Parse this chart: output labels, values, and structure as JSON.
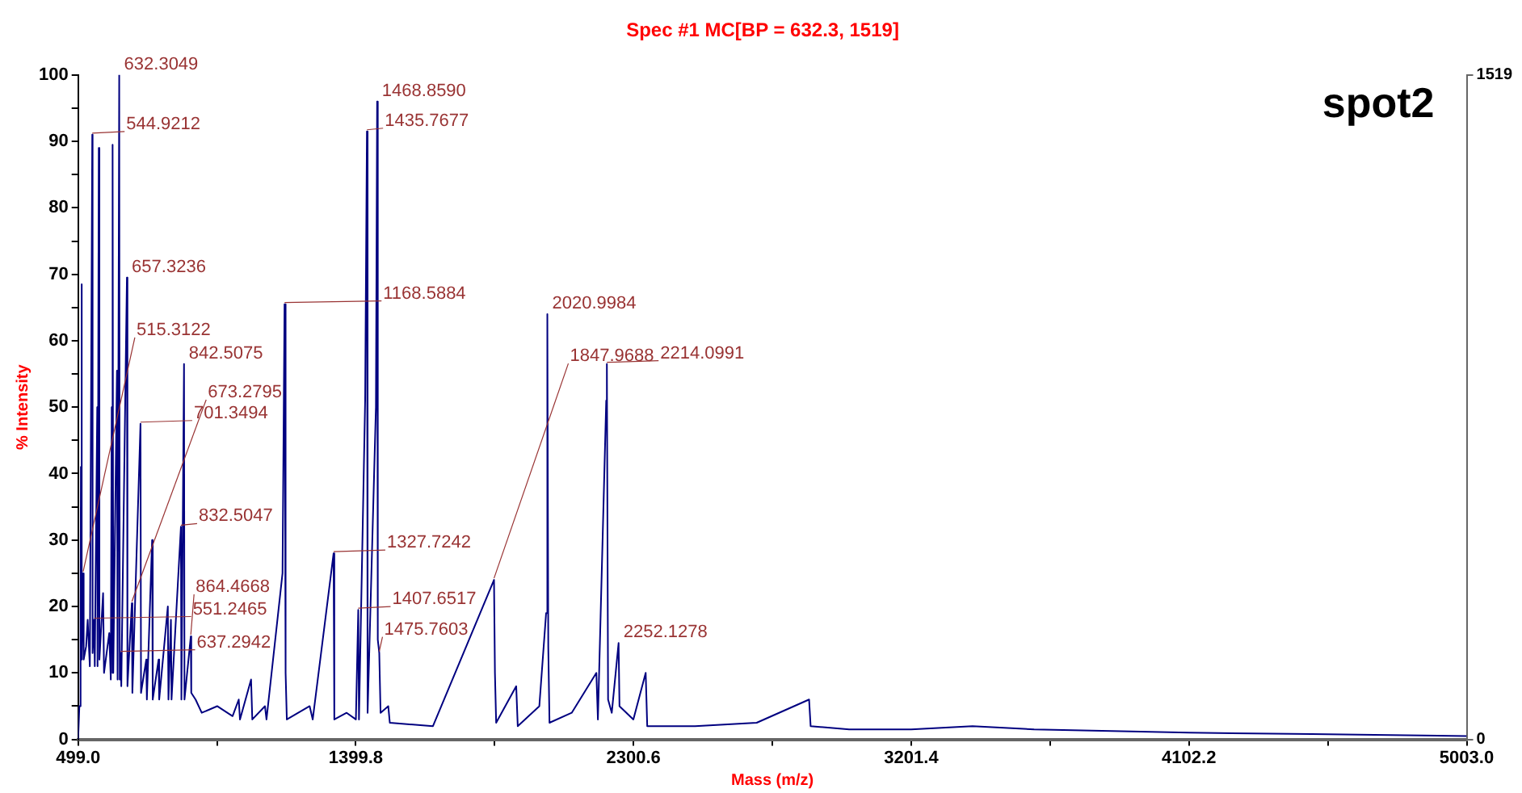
{
  "chart_data": {
    "type": "line",
    "title": "Spec #1 MC[BP = 632.3, 1519]",
    "xlabel": "Mass (m/z)",
    "ylabel": "% Intensity",
    "xlim": [
      499,
      5003
    ],
    "xticks": [
      {
        "value": 499,
        "label": "499.0"
      },
      {
        "value": 949.4,
        "label": null
      },
      {
        "value": 1399.8,
        "label": "1399.8"
      },
      {
        "value": 1850.2,
        "label": null
      },
      {
        "value": 2300.6,
        "label": "2300.6"
      },
      {
        "value": 2751,
        "label": null
      },
      {
        "value": 3201.4,
        "label": "3201.4"
      },
      {
        "value": 3651.8,
        "label": null
      },
      {
        "value": 4102.2,
        "label": "4102.2"
      },
      {
        "value": 4552.6,
        "label": null
      },
      {
        "value": 5003,
        "label": "5003.0"
      }
    ],
    "ylim": [
      0,
      100
    ],
    "yticks": [
      0,
      {
        "value": 5,
        "label": null
      },
      10,
      {
        "value": 15,
        "label": null
      },
      20,
      {
        "value": 25,
        "label": null
      },
      30,
      {
        "value": 35,
        "label": null
      },
      40,
      {
        "value": 45,
        "label": null
      },
      50,
      {
        "value": 55,
        "label": null
      },
      60,
      {
        "value": 65,
        "label": null
      },
      70,
      {
        "value": 75,
        "label": null
      },
      80,
      {
        "value": 85,
        "label": null
      },
      90,
      {
        "value": 95,
        "label": null
      },
      100
    ],
    "y2lim": [
      0,
      1519
    ],
    "y2ticks": [
      0,
      1519
    ],
    "grid": false,
    "legend": false,
    "marker": "none",
    "line_style": "solid",
    "series": [
      {
        "color": "#000080",
        "x": [
          499,
          503,
          507,
          508,
          509,
          511,
          512,
          515.3,
          517,
          525,
          530,
          537,
          544.9,
          546,
          551.2,
          553,
          561,
          562,
          566,
          568,
          580,
          583,
          600,
          605,
          608,
          610,
          611.6,
          613,
          625,
          627,
          632.3,
          634,
          637.3,
          639,
          657.3,
          659,
          673.3,
          675,
          701.3,
          703,
          720,
          722,
          739,
          741,
          760,
          762,
          790,
          792,
          800,
          802,
          832.5,
          834,
          842.5,
          844,
          864.5,
          866,
          880,
          900,
          950,
          1000,
          1020,
          1024,
          1060,
          1064,
          1105,
          1110,
          1162,
          1168.6,
          1172,
          1176,
          1250,
          1260,
          1327.7,
          1330,
          1370,
          1400,
          1407.7,
          1410,
          1430,
          1435.8,
          1438,
          1465,
          1468.9,
          1471,
          1475.8,
          1480,
          1505,
          1510,
          1650,
          1848,
          1851,
          1855,
          1920,
          1925,
          1995,
          2017,
          2021,
          2024,
          2028,
          2100,
          2180,
          2185,
          2212,
          2214.1,
          2218,
          2230,
          2252.1,
          2255,
          2300,
          2340,
          2345,
          2500,
          2700,
          2870,
          2875,
          3000,
          3201,
          3400,
          3600,
          4102,
          4500,
          5003
        ],
        "values": [
          0,
          5,
          20,
          41,
          12,
          68.5,
          13,
          25,
          12,
          14,
          18,
          11,
          91,
          13,
          18,
          11,
          50,
          11,
          89,
          12,
          22,
          10,
          16,
          9,
          50,
          10,
          89.5,
          10,
          55.5,
          9,
          100,
          9,
          13,
          8,
          69.5,
          8,
          20.5,
          7,
          47.5,
          7,
          12,
          6,
          30,
          6,
          12,
          6,
          20,
          6,
          18,
          6,
          32,
          6,
          56.5,
          6,
          15.5,
          7,
          6,
          4,
          5,
          3.5,
          6,
          3,
          9,
          3,
          5,
          3,
          25,
          65.5,
          10,
          3,
          5,
          3,
          28,
          3,
          4,
          3,
          19.5,
          3,
          51,
          91.5,
          4,
          50,
          96,
          15,
          13,
          4,
          5,
          2.5,
          2,
          24,
          10,
          2.5,
          8,
          2,
          5,
          19,
          64,
          14,
          2.5,
          4,
          10,
          3,
          51,
          56.5,
          6,
          4,
          14.5,
          5,
          3,
          10,
          2,
          2,
          2.5,
          6,
          2,
          1.5,
          1.5,
          2,
          1.5,
          1,
          0.8,
          0.5
        ]
      }
    ],
    "annotations": [
      "spot2",
      {
        "text": "632.3049",
        "x": 632.3,
        "y": 100
      },
      {
        "text": "544.9212",
        "x": 544.9,
        "y": 91
      },
      {
        "text": "657.3236",
        "x": 657.3,
        "y": 69.5
      },
      {
        "text": "842.5075",
        "x": 842.5,
        "y": 56.5
      },
      {
        "text": "701.3494",
        "x": 701.3,
        "y": 47.5
      },
      {
        "text": "832.5047",
        "x": 832.5,
        "y": 32
      },
      {
        "text": "515.3122",
        "x": 515.3,
        "y": 25
      },
      {
        "text": "673.2795",
        "x": 673.3,
        "y": 20.5
      },
      {
        "text": "551.2465",
        "x": 551.2,
        "y": 18
      },
      {
        "text": "637.2942",
        "x": 637.3,
        "y": 13
      },
      {
        "text": "864.4668",
        "x": 864.5,
        "y": 15.5
      },
      {
        "text": "1168.5884",
        "x": 1168.6,
        "y": 65.5
      },
      {
        "text": "1327.7242",
        "x": 1327.7,
        "y": 28
      },
      {
        "text": "1407.6517",
        "x": 1407.7,
        "y": 19.5
      },
      {
        "text": "1435.7677",
        "x": 1435.8,
        "y": 91.5
      },
      {
        "text": "1468.8590",
        "x": 1468.9,
        "y": 96
      },
      {
        "text": "1475.7603",
        "x": 1475.8,
        "y": 13
      },
      {
        "text": "1847.9688",
        "x": 1848,
        "y": 24
      },
      {
        "text": "2020.9984",
        "x": 2021,
        "y": 64
      },
      {
        "text": "2214.0991",
        "x": 2214.1,
        "y": 56.5
      },
      {
        "text": "2252.1278",
        "x": 2252.1,
        "y": 14.5
      }
    ]
  }
}
